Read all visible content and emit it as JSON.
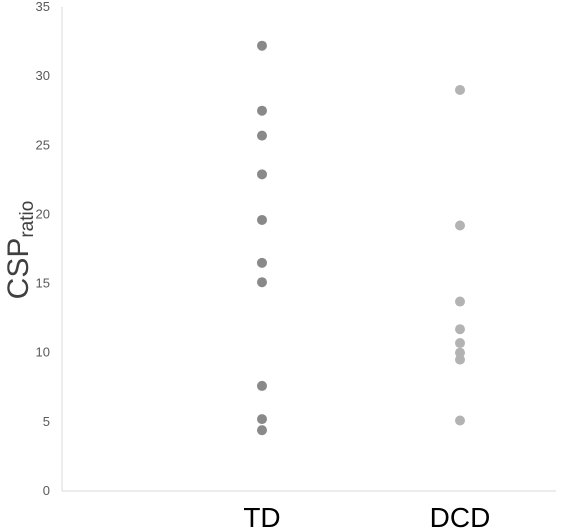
{
  "chart_data": {
    "type": "scatter",
    "title": "",
    "xlabel": "",
    "ylabel": "CSP",
    "ylabel_subscript": "ratio",
    "ylim": [
      0,
      35
    ],
    "yticks": [
      0,
      5,
      10,
      15,
      20,
      25,
      30,
      35
    ],
    "grid": false,
    "legend": "none",
    "categories": [
      "TD",
      "DCD"
    ],
    "series": [
      {
        "category": "TD",
        "color": "#898989",
        "values": [
          32.2,
          27.5,
          25.7,
          22.9,
          19.6,
          16.5,
          15.1,
          7.6,
          5.2,
          4.4
        ]
      },
      {
        "category": "DCD",
        "color": "#b3b3b3",
        "values": [
          29.0,
          19.2,
          13.7,
          11.7,
          10.7,
          10.0,
          9.5,
          5.1
        ]
      }
    ]
  }
}
